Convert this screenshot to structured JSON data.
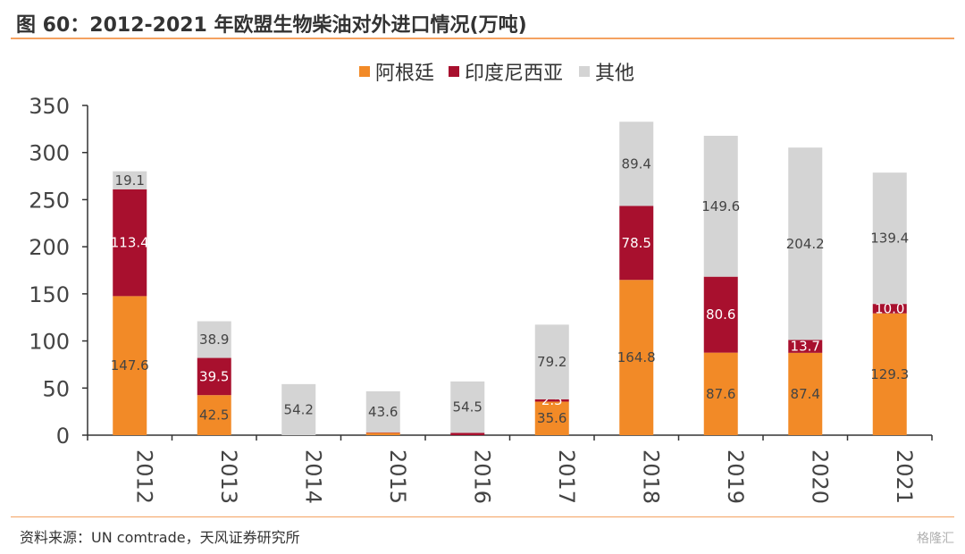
{
  "title": "图 60：2012-2021 年欧盟生物柴油对外进口情况(万吨)",
  "source": "资料来源：UN comtrade，天风证券研究所",
  "watermark": "格隆汇",
  "chart_data": {
    "type": "bar",
    "stacked": true,
    "categories": [
      "2012",
      "2013",
      "2014",
      "2015",
      "2016",
      "2017",
      "2018",
      "2019",
      "2020",
      "2021"
    ],
    "ylim": [
      0,
      350
    ],
    "yticks": [
      0,
      50,
      100,
      150,
      200,
      250,
      300,
      350
    ],
    "legend_position": "top",
    "grid": false,
    "series": [
      {
        "name": "阿根廷",
        "color": "#f28a27",
        "values": [
          147.6,
          42.5,
          0,
          2.5,
          0,
          35.6,
          164.8,
          87.6,
          87.4,
          129.3
        ],
        "labels": [
          "147.6",
          "42.5",
          "",
          "",
          "",
          "35.6",
          "164.8",
          "87.6",
          "87.4",
          "129.3"
        ]
      },
      {
        "name": "印度尼西亚",
        "color": "#a8102e",
        "values": [
          113.4,
          39.5,
          0,
          0.5,
          2.5,
          2.5,
          78.5,
          80.6,
          13.7,
          10.0
        ],
        "labels": [
          "113.4",
          "39.5",
          "",
          "",
          "",
          "2.5",
          "78.5",
          "80.6",
          "13.7",
          "10.0"
        ]
      },
      {
        "name": "其他",
        "color": "#d4d4d4",
        "values": [
          19.1,
          38.9,
          54.2,
          43.6,
          54.5,
          79.2,
          89.4,
          149.6,
          204.2,
          139.4
        ],
        "labels": [
          "19.1",
          "38.9",
          "54.2",
          "43.6",
          "54.5",
          "79.2",
          "89.4",
          "149.6",
          "204.2",
          "139.4"
        ]
      }
    ]
  }
}
